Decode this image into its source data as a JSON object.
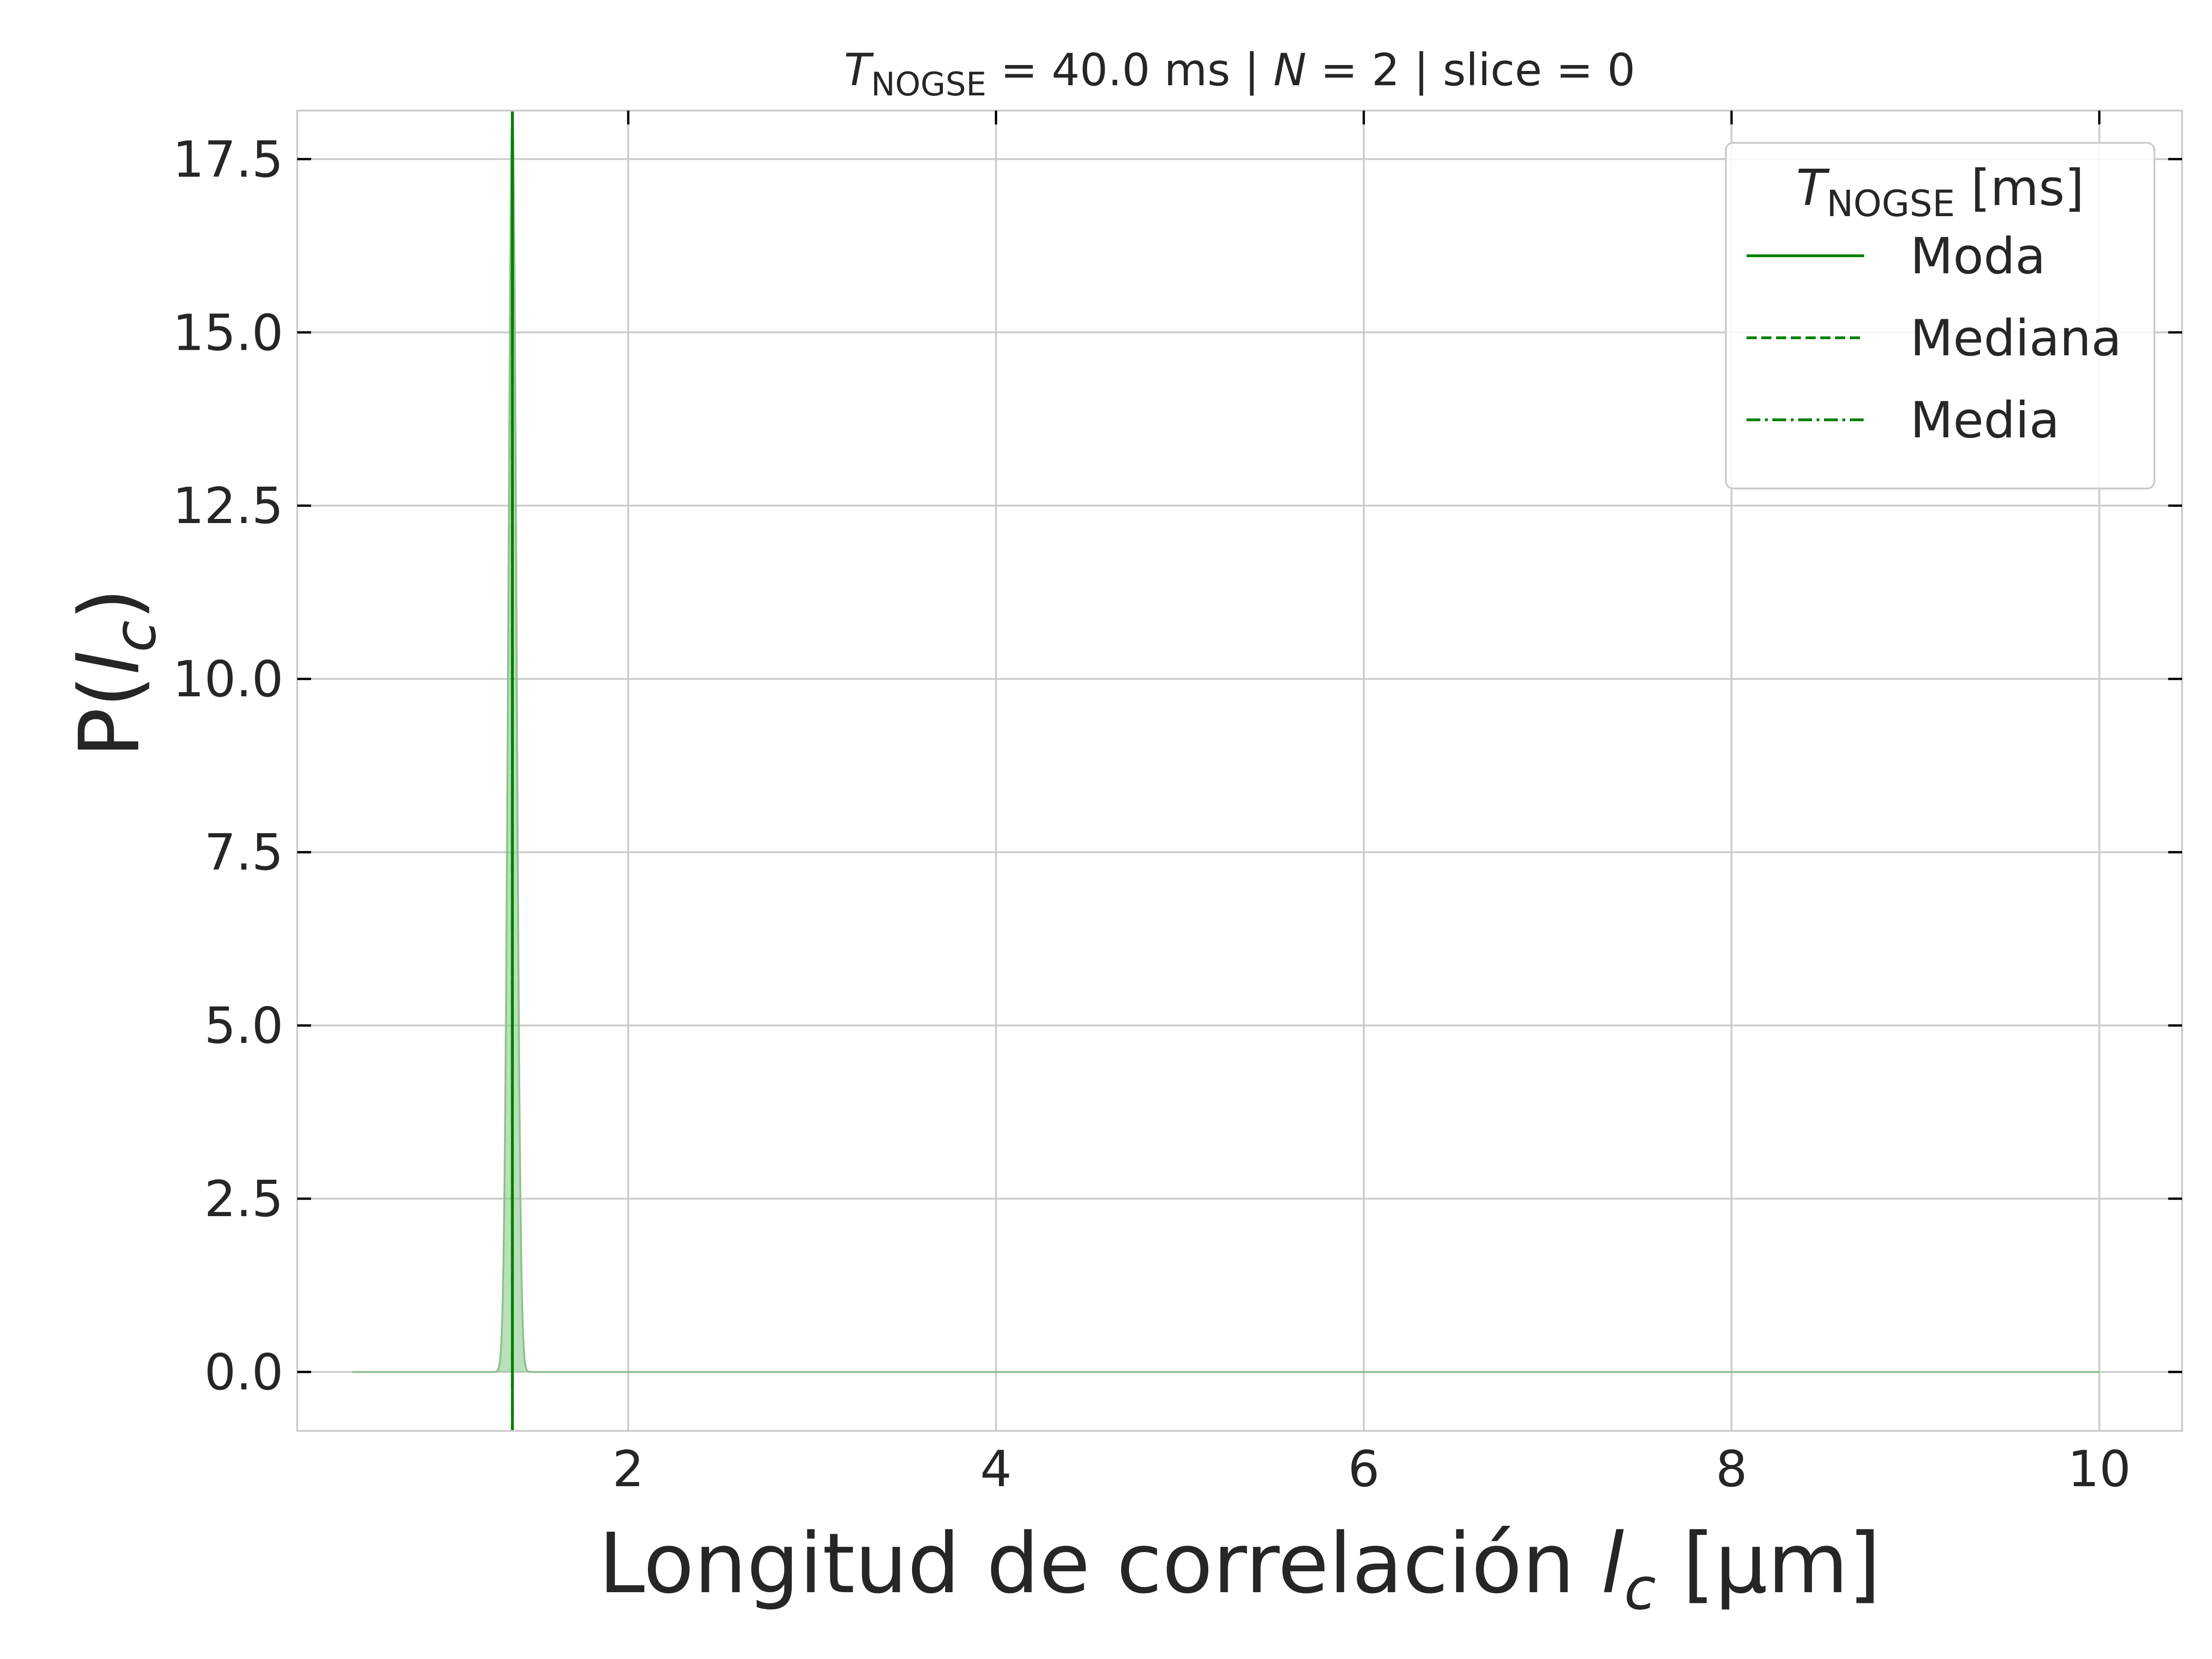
{
  "chart_data": {
    "type": "line",
    "title": {
      "prefix": "T",
      "subscript": "NOGSE",
      "rest_1": " = 40.0 ms | ",
      "n_symbol": "N",
      "rest_2": " = 2 | slice = 0"
    },
    "xlabel": {
      "text": "Longitud de correlación ",
      "symbol": "l",
      "subscript": "c",
      "units": " [μm]"
    },
    "ylabel": {
      "prefix": "P(",
      "symbol": "l",
      "subscript": "c",
      "suffix": ")"
    },
    "xlim": [
      0.2,
      10.45
    ],
    "ylim": [
      -0.85,
      18.2
    ],
    "xticks": [
      2,
      4,
      6,
      8,
      10
    ],
    "yticks": [
      0.0,
      2.5,
      5.0,
      7.5,
      10.0,
      12.5,
      15.0,
      17.5
    ],
    "xtick_labels": [
      "2",
      "4",
      "6",
      "8",
      "10"
    ],
    "ytick_labels": [
      "0.0",
      "2.5",
      "5.0",
      "7.5",
      "10.0",
      "12.5",
      "15.0",
      "17.5"
    ],
    "grid": true,
    "colors": {
      "series": "#008000",
      "fill": "#7fc97f",
      "grid": "#cccccc",
      "spine": "#cccccc",
      "text": "#262626"
    },
    "series": [
      {
        "kind": "distribution",
        "x_range": [
          0.5,
          10.0
        ],
        "peak_x": 1.37,
        "peak_y": 18.2,
        "width_sigma": 0.022
      }
    ],
    "vlines": [
      {
        "name": "Moda",
        "x": 1.37,
        "style": "solid"
      },
      {
        "name": "Mediana",
        "x": 1.37,
        "style": "dashed"
      },
      {
        "name": "Media",
        "x": 1.37,
        "style": "dashdot"
      }
    ],
    "legend": {
      "title": {
        "symbol": "T",
        "subscript": "NOGSE",
        "suffix": " [ms]"
      },
      "placement": "top-right",
      "entries": [
        {
          "label": "Moda",
          "style": "solid"
        },
        {
          "label": "Mediana",
          "style": "dashed"
        },
        {
          "label": "Media",
          "style": "dashdot"
        }
      ]
    }
  }
}
